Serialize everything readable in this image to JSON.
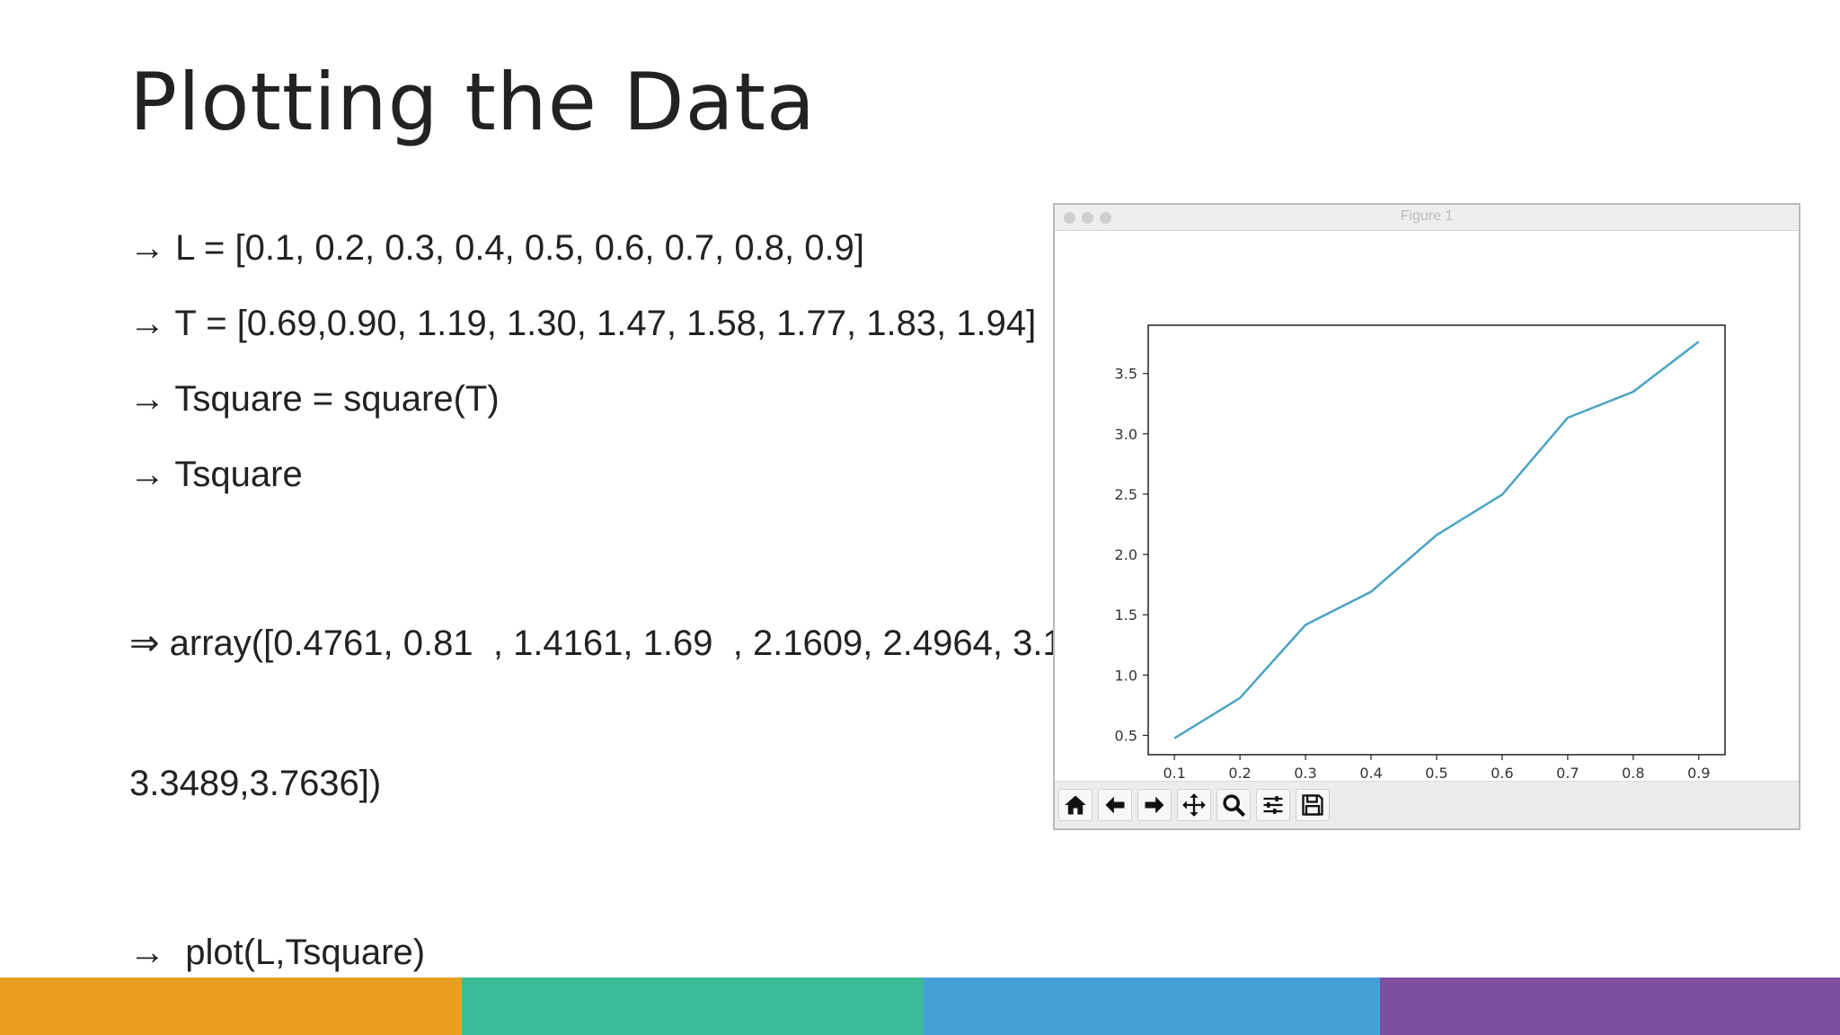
{
  "slide": {
    "title": "Plotting the Data",
    "bullets": [
      "→ L = [0.1, 0.2, 0.3, 0.4, 0.5, 0.6, 0.7, 0.8, 0.9]",
      "→ T = [0.69,0.90, 1.19, 1.30, 1.47, 1.58, 1.77, 1.83, 1.94]",
      "→ Tsquare = square(T)",
      "→ Tsquare",
      "⇒ array([0.4761, 0.81  , 1.4161, 1.69  , 2.1609, 2.4964, 3.1",
      "3.3489,3.7636])",
      "→  plot(L,Tsquare)"
    ],
    "footer_colors": [
      "#E9A020",
      "#3BBB98",
      "#44A0D6",
      "#7E4F9E"
    ]
  },
  "figure_window": {
    "title": "Figure 1",
    "toolbar": [
      {
        "name": "home-icon",
        "label": "home"
      },
      {
        "name": "back-arrow-icon",
        "label": "back"
      },
      {
        "name": "forward-arrow-icon",
        "label": "forward"
      },
      {
        "name": "pan-icon",
        "label": "pan"
      },
      {
        "name": "zoom-icon",
        "label": "zoom"
      },
      {
        "name": "configure-subplots-icon",
        "label": "configure subplots"
      },
      {
        "name": "save-icon",
        "label": "save"
      }
    ]
  },
  "chart_data": {
    "type": "line",
    "x": [
      0.1,
      0.2,
      0.3,
      0.4,
      0.5,
      0.6,
      0.7,
      0.8,
      0.9
    ],
    "series": [
      {
        "values": [
          0.4761,
          0.81,
          1.4161,
          1.69,
          2.1609,
          2.4964,
          3.1329,
          3.3489,
          3.7636
        ],
        "color": "#4aa3c4"
      }
    ],
    "xticks": [
      "0.1",
      "0.2",
      "0.3",
      "0.4",
      "0.5",
      "0.6",
      "0.7",
      "0.8",
      "0.9"
    ],
    "yticks": [
      "0.5",
      "1.0",
      "1.5",
      "2.0",
      "2.5",
      "3.0",
      "3.5"
    ],
    "xlim": [
      0.06,
      0.94
    ],
    "ylim": [
      0.34,
      3.9
    ],
    "grid": false
  }
}
